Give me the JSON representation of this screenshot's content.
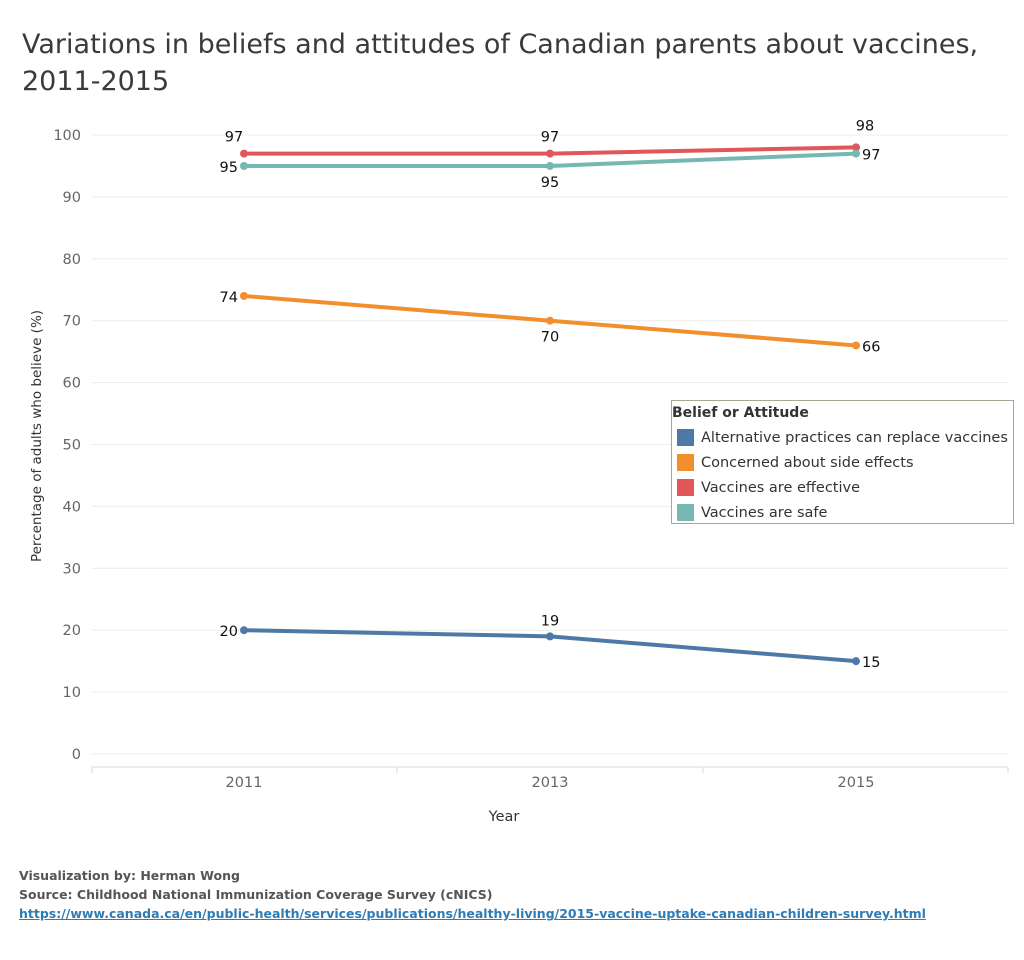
{
  "title": {
    "line1": "Variations in beliefs and attitudes of Canadian parents about vaccines,",
    "line2": "2011-2015"
  },
  "chart_data": {
    "type": "line",
    "x": [
      "2011",
      "2013",
      "2015"
    ],
    "xlabel": "Year",
    "ylabel": "Percentage of adults who believe (%)",
    "ylim": [
      0,
      100
    ],
    "yticks": [
      "0",
      "10",
      "20",
      "30",
      "40",
      "50",
      "60",
      "70",
      "80",
      "90",
      "100"
    ],
    "grid": true,
    "legend_position": "right",
    "legend_title": "Belief or Attitude",
    "series": [
      {
        "name": "Alternative practices can replace vaccines",
        "color": "#4e79a7",
        "values": [
          20,
          19,
          15
        ]
      },
      {
        "name": "Concerned about side effects",
        "color": "#f28e2b",
        "values": [
          74,
          70,
          66
        ]
      },
      {
        "name": "Vaccines are effective",
        "color": "#e15759",
        "values": [
          97,
          97,
          98
        ]
      },
      {
        "name": "Vaccines are safe",
        "color": "#76b7b2",
        "values": [
          95,
          95,
          97
        ]
      }
    ]
  },
  "footer": {
    "credit": "Visualization by: Herman Wong",
    "source": "Source: Childhood National Immunization Coverage Survey (cNICS)",
    "link": "https://www.canada.ca/en/public-health/services/publications/healthy-living/2015-vaccine-uptake-canadian-children-survey.html"
  }
}
